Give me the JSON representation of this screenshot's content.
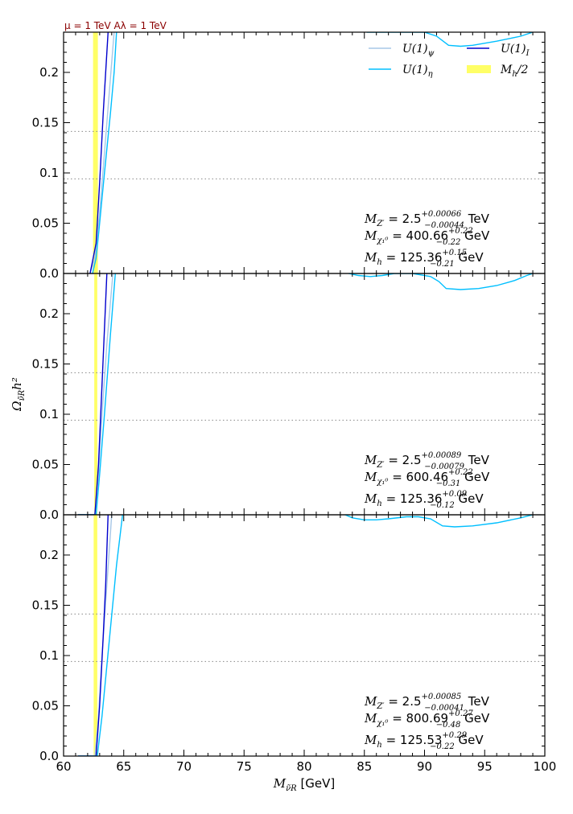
{
  "chart_data": {
    "type": "line",
    "top_note": "μ = 1 TeV  Aλ = 1 TeV",
    "xlabel": "M_ν̃R [GeV]",
    "xlabel_sym": "M",
    "xlabel_sub": "ν̃R",
    "xlabel_unit": " [GeV]",
    "ylabel": "Ω_ν̃R h²",
    "ylabel_sym": "Ω",
    "ylabel_sub": "ν̃R",
    "ylabel_tail": "h²",
    "xlim": [
      60,
      100
    ],
    "ylim": [
      0,
      0.24
    ],
    "x_ticks": [
      "60",
      "65",
      "70",
      "75",
      "80",
      "85",
      "90",
      "95",
      "100"
    ],
    "y_ticks": [
      "0.0",
      "0.05",
      "0.1",
      "0.15",
      "0.2"
    ],
    "reference_lines_y": [
      0.0941,
      0.1413
    ],
    "legend": {
      "placement": "top-right",
      "entries": [
        {
          "label": "U(1)ψ",
          "sym": "U(1)",
          "sub": "ψ",
          "color": "#a7c7e7",
          "kind": "line"
        },
        {
          "label": "U(1)I",
          "sym": "U(1)",
          "sub": "I",
          "color": "#0000cd",
          "kind": "line"
        },
        {
          "label": "U(1)η",
          "sym": "U(1)",
          "sub": "η",
          "color": "#00bfff",
          "kind": "line"
        },
        {
          "label": "Mh/2",
          "sym": "M",
          "sub": "h",
          "tail": "/2",
          "color": "#ffff66",
          "kind": "band"
        }
      ]
    },
    "panels": [
      {
        "band": [
          62.45,
          62.85
        ],
        "annotations": [
          {
            "sym": "M",
            "sub": "Z′",
            "value": "= 2.5",
            "sup": "+0.00066",
            "lowsub": "−0.00044",
            "unit": " TeV"
          },
          {
            "sym": "M",
            "sub": "χ₁⁰",
            "value": "= 400.66",
            "sup": "+0.22",
            "lowsub": "−0.22",
            "unit": " GeV"
          },
          {
            "sym": "M",
            "sub": "h",
            "value": "= 125.36",
            "sup": "+0.15",
            "lowsub": "−0.21",
            "unit": " GeV"
          }
        ],
        "series": [
          {
            "name": "U(1)ψ",
            "color": "#a7c7e7",
            "x": [
              62.2,
              62.6,
              63.0,
              63.4,
              63.8,
              64.2
            ],
            "y": [
              0,
              0.015,
              0.06,
              0.12,
              0.18,
              0.24
            ]
          },
          {
            "name": "U(1)I",
            "color": "#0000cd",
            "x": [
              62.2,
              62.7,
              63.0,
              63.3,
              63.7
            ],
            "y": [
              0,
              0.03,
              0.09,
              0.16,
              0.24
            ]
          },
          {
            "name": "U(1)η",
            "color": "#00bfff",
            "x": [
              62.4,
              62.7,
              63.0,
              63.4,
              63.9,
              64.2,
              64.4
            ],
            "y": [
              0,
              0.015,
              0.05,
              0.1,
              0.16,
              0.2,
              0.24
            ]
          },
          {
            "name": "U(1)η",
            "color": "#00bfff",
            "x": [
              85.2,
              88.0,
              90.0,
              91.0,
              92.0,
              93.0,
              94.0,
              96.0,
              98.0,
              99.0
            ],
            "y": [
              0.24,
              0.24,
              0.24,
              0.236,
              0.227,
              0.226,
              0.227,
              0.231,
              0.236,
              0.24
            ]
          }
        ]
      },
      {
        "band": [
          62.55,
          62.8
        ],
        "annotations": [
          {
            "sym": "M",
            "sub": "Z′",
            "value": "= 2.5",
            "sup": "+0.00089",
            "lowsub": "−0.00079",
            "unit": " TeV"
          },
          {
            "sym": "M",
            "sub": "χ₁⁰",
            "value": "= 600.46",
            "sup": "+0.22",
            "lowsub": "−0.31",
            "unit": " GeV"
          },
          {
            "sym": "M",
            "sub": "h",
            "value": "= 125.36",
            "sup": "+0.09",
            "lowsub": "−0.12",
            "unit": " GeV"
          }
        ],
        "series": [
          {
            "name": "U(1)ψ",
            "color": "#a7c7e7",
            "x": [
              61.2,
              62.6,
              62.9,
              63.2,
              63.6,
              64.1
            ],
            "y": [
              0,
              0,
              0.04,
              0.1,
              0.17,
              0.24
            ]
          },
          {
            "name": "U(1)I",
            "color": "#0000cd",
            "x": [
              61.2,
              62.6,
              62.9,
              63.2,
              63.6
            ],
            "y": [
              0,
              0,
              0.05,
              0.13,
              0.24
            ]
          },
          {
            "name": "U(1)η",
            "color": "#00bfff",
            "x": [
              61.2,
              62.7,
              63.0,
              63.4,
              63.9,
              64.3
            ],
            "y": [
              0,
              0,
              0.04,
              0.1,
              0.18,
              0.24
            ]
          },
          {
            "name": "U(1)η",
            "color": "#00bfff",
            "x": [
              83.7,
              84.5,
              85.5,
              86.5,
              87.5,
              89.0,
              90.5,
              91.2,
              91.8,
              93.0,
              94.5,
              96.0,
              97.5,
              98.5,
              99.0
            ],
            "y": [
              0.24,
              0.238,
              0.237,
              0.238,
              0.24,
              0.24,
              0.237,
              0.232,
              0.225,
              0.224,
              0.225,
              0.228,
              0.233,
              0.238,
              0.24
            ]
          }
        ]
      },
      {
        "band": [
          62.5,
          62.8
        ],
        "annotations": [
          {
            "sym": "M",
            "sub": "Z′",
            "value": "= 2.5",
            "sup": "+0.00085",
            "lowsub": "−0.00041",
            "unit": " TeV"
          },
          {
            "sym": "M",
            "sub": "χ₁⁰",
            "value": "= 800.69",
            "sup": "+0.27",
            "lowsub": "−0.48",
            "unit": " GeV"
          },
          {
            "sym": "M",
            "sub": "h",
            "value": "= 125.53",
            "sup": "+0.29",
            "lowsub": "−0.22",
            "unit": " GeV"
          }
        ],
        "series": [
          {
            "name": "U(1)ψ",
            "color": "#a7c7e7",
            "x": [
              61.2,
              62.6,
              62.9,
              63.2,
              63.6,
              64.0
            ],
            "y": [
              0,
              0,
              0.04,
              0.1,
              0.17,
              0.24
            ]
          },
          {
            "name": "U(1)I",
            "color": "#0000cd",
            "x": [
              61.2,
              62.7,
              63.0,
              63.3,
              63.5,
              63.7
            ],
            "y": [
              0,
              0,
              0.05,
              0.12,
              0.17,
              0.24
            ]
          },
          {
            "name": "U(1)η",
            "color": "#00bfff",
            "x": [
              61.2,
              62.8,
              63.2,
              63.6,
              64.0,
              64.4,
              64.9
            ],
            "y": [
              0,
              0,
              0.04,
              0.09,
              0.14,
              0.19,
              0.24
            ]
          },
          {
            "name": "U(1)η",
            "color": "#00bfff",
            "x": [
              83.4,
              84.0,
              85.0,
              86.0,
              87.0,
              88.5,
              89.5,
              90.5,
              91.5,
              92.5,
              94.0,
              96.0,
              98.0,
              99.0
            ],
            "y": [
              0.24,
              0.237,
              0.235,
              0.235,
              0.236,
              0.238,
              0.238,
              0.236,
              0.229,
              0.228,
              0.229,
              0.232,
              0.237,
              0.24
            ]
          }
        ]
      }
    ]
  }
}
